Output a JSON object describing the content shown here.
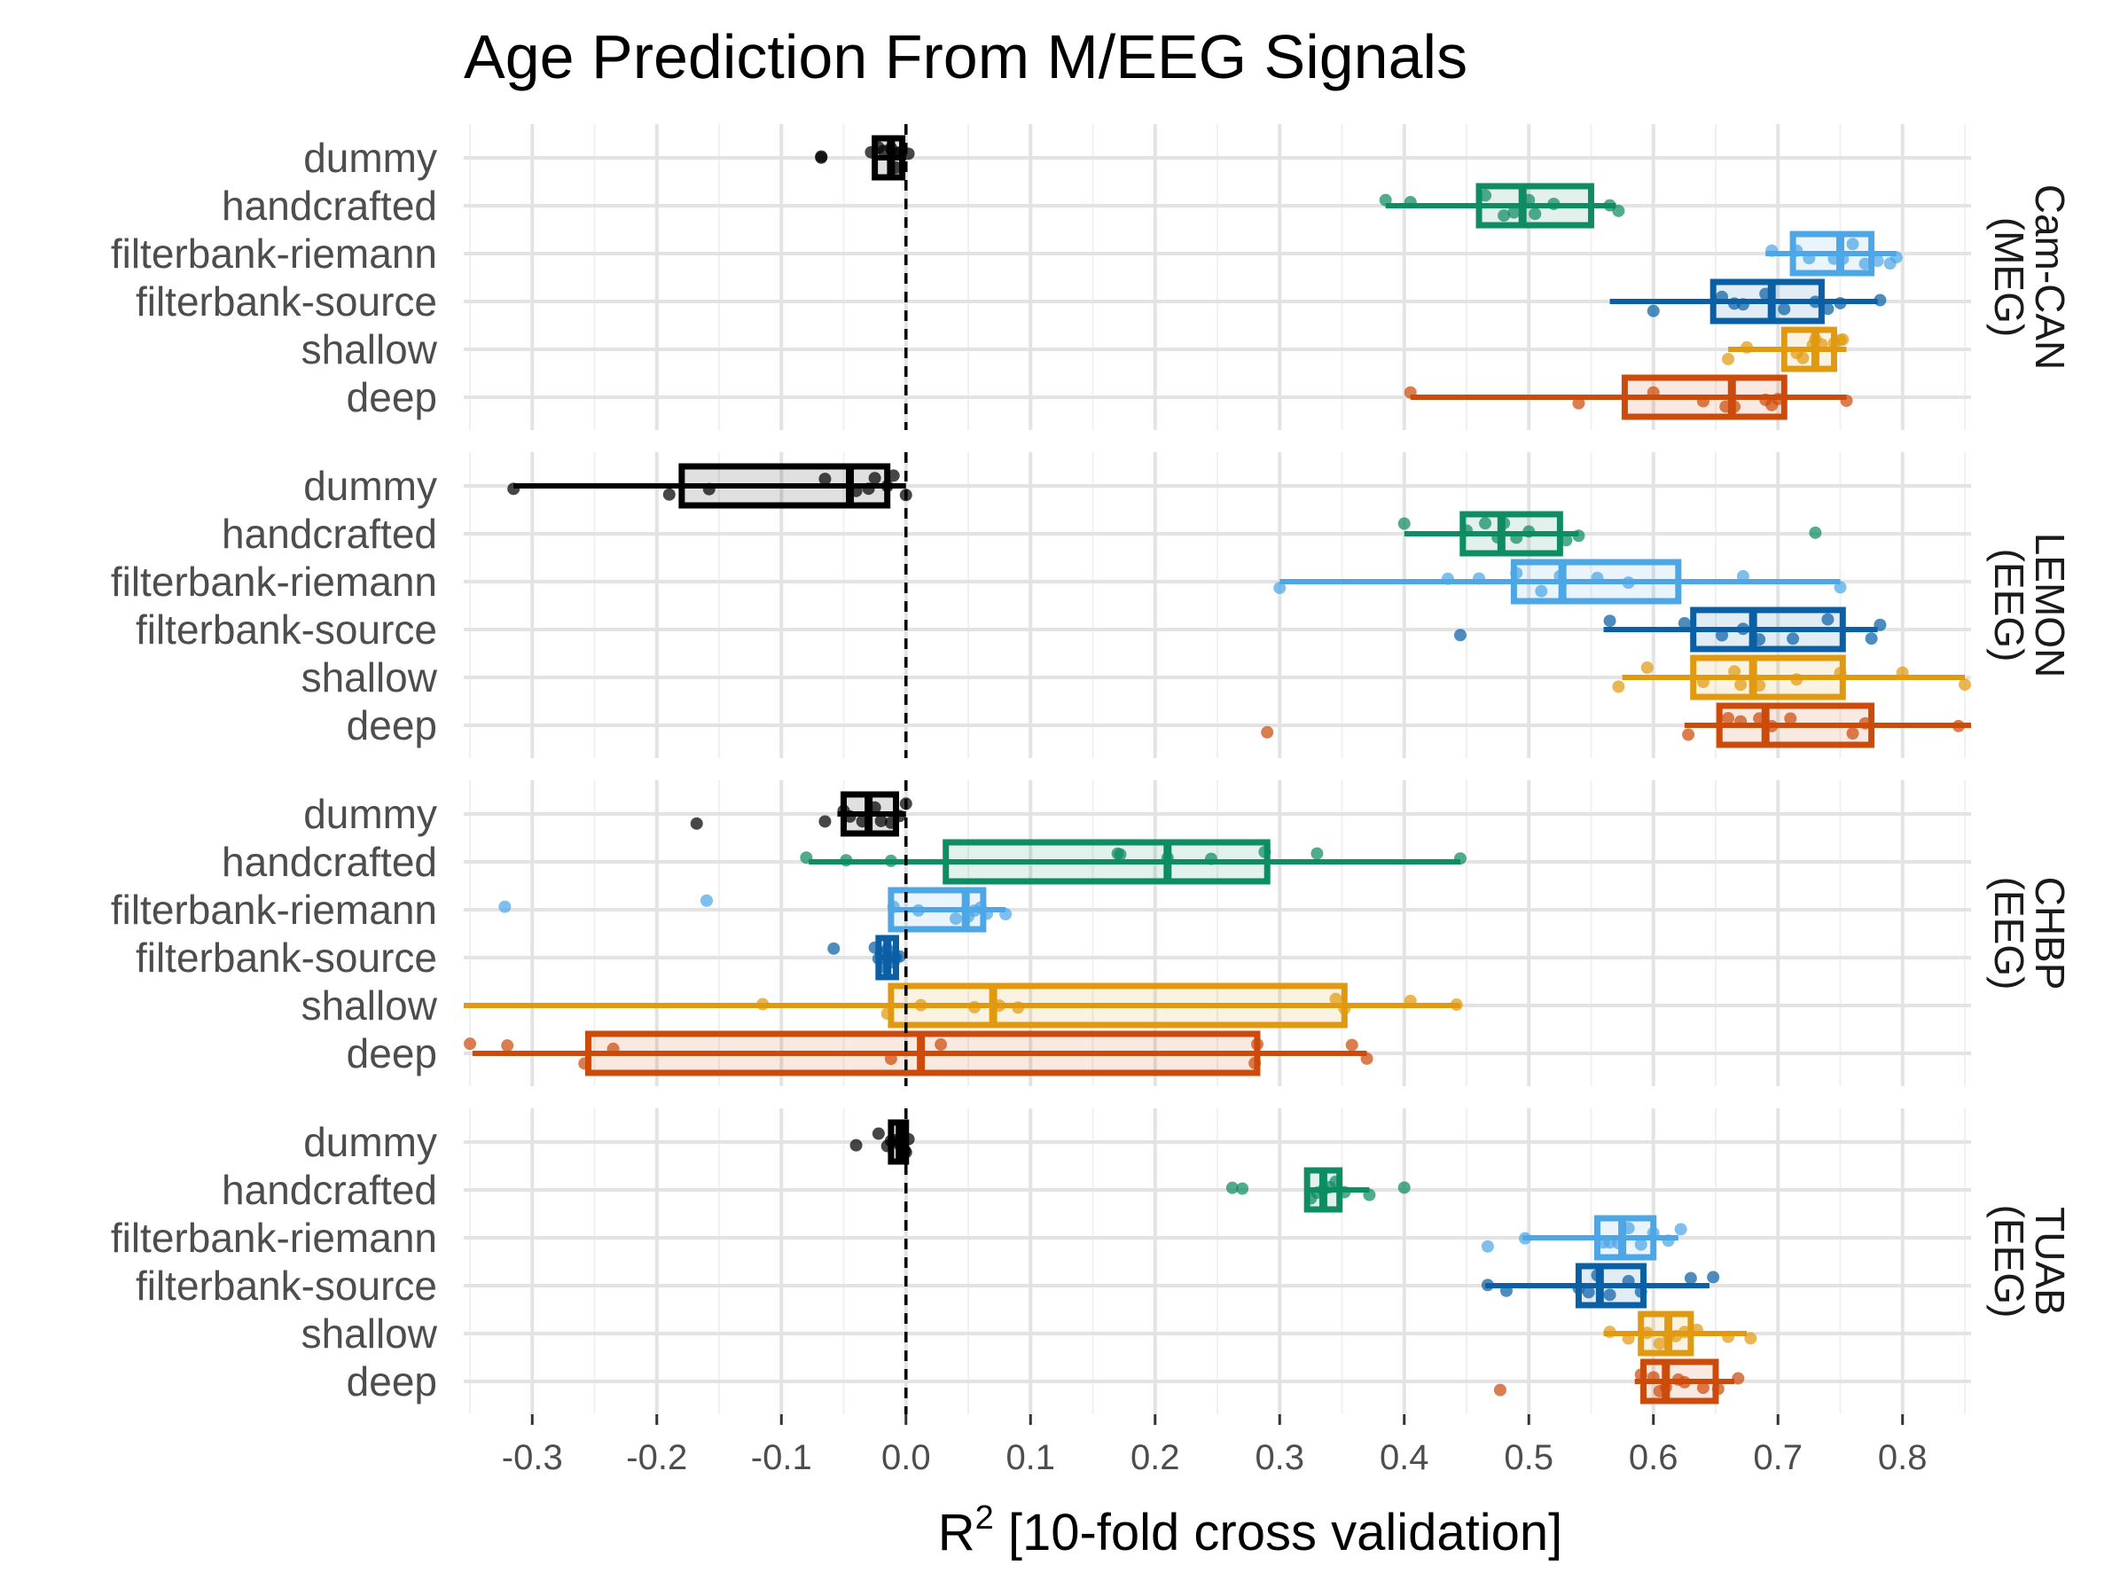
{
  "chart_data": {
    "type": "boxplot",
    "title": "Age Prediction From M/EEG Signals",
    "xlabel_main": "R",
    "xlabel_sup": "2",
    "xlabel_rest": " [10-fold cross validation]",
    "xlim": [
      -0.355,
      0.855
    ],
    "xticks": [
      -0.3,
      -0.2,
      -0.1,
      0.0,
      0.1,
      0.2,
      0.3,
      0.4,
      0.5,
      0.6,
      0.7,
      0.8
    ],
    "xtick_labels": [
      "-0.3",
      "-0.2",
      "-0.1",
      "0.0",
      "0.1",
      "0.2",
      "0.3",
      "0.4",
      "0.5",
      "0.6",
      "0.7",
      "0.8"
    ],
    "reference_line": 0.0,
    "grid": true,
    "categories": [
      "dummy",
      "handcrafted",
      "filterbank-riemann",
      "filterbank-source",
      "shallow",
      "deep"
    ],
    "colors": {
      "dummy": "#000000",
      "handcrafted": "#0e8c63",
      "filterbank-riemann": "#4da6e6",
      "filterbank-source": "#0b5fa5",
      "shallow": "#e19a10",
      "deep": "#cc4b0b"
    },
    "panels": [
      {
        "label_line1": "Cam-CAN",
        "label_line2": "(MEG)",
        "boxes": [
          {
            "name": "dummy",
            "whisker_low": -0.025,
            "q1": -0.025,
            "median": -0.012,
            "q3": -0.003,
            "whisker_high": 0.0,
            "points": [
              -0.068,
              -0.068,
              -0.028,
              -0.022,
              -0.018,
              -0.012,
              -0.008,
              -0.006,
              -0.004,
              0.002
            ]
          },
          {
            "name": "handcrafted",
            "whisker_low": 0.385,
            "q1": 0.46,
            "median": 0.495,
            "q3": 0.55,
            "whisker_high": 0.57,
            "points": [
              0.385,
              0.405,
              0.465,
              0.48,
              0.488,
              0.5,
              0.505,
              0.52,
              0.565,
              0.572
            ]
          },
          {
            "name": "filterbank-riemann",
            "whisker_low": 0.69,
            "q1": 0.712,
            "median": 0.75,
            "q3": 0.775,
            "whisker_high": 0.795,
            "points": [
              0.695,
              0.715,
              0.725,
              0.745,
              0.752,
              0.76,
              0.77,
              0.78,
              0.79,
              0.795
            ]
          },
          {
            "name": "filterbank-source",
            "whisker_low": 0.565,
            "q1": 0.648,
            "median": 0.695,
            "q3": 0.735,
            "whisker_high": 0.78,
            "points": [
              0.6,
              0.655,
              0.665,
              0.672,
              0.69,
              0.705,
              0.73,
              0.74,
              0.75,
              0.782
            ]
          },
          {
            "name": "shallow",
            "whisker_low": 0.66,
            "q1": 0.705,
            "median": 0.73,
            "q3": 0.745,
            "whisker_high": 0.755,
            "points": [
              0.66,
              0.675,
              0.715,
              0.72,
              0.728,
              0.73,
              0.735,
              0.745,
              0.75,
              0.752
            ]
          },
          {
            "name": "deep",
            "whisker_low": 0.405,
            "q1": 0.577,
            "median": 0.663,
            "q3": 0.705,
            "whisker_high": 0.755,
            "points": [
              0.405,
              0.54,
              0.6,
              0.64,
              0.658,
              0.665,
              0.69,
              0.695,
              0.7,
              0.755
            ]
          }
        ]
      },
      {
        "label_line1": "LEMON",
        "label_line2": "(EEG)",
        "boxes": [
          {
            "name": "dummy",
            "whisker_low": -0.315,
            "q1": -0.18,
            "median": -0.045,
            "q3": -0.015,
            "whisker_high": 0.0,
            "points": [
              -0.315,
              -0.19,
              -0.158,
              -0.065,
              -0.04,
              -0.03,
              -0.025,
              -0.015,
              -0.01,
              0.0
            ]
          },
          {
            "name": "handcrafted",
            "whisker_low": 0.4,
            "q1": 0.447,
            "median": 0.478,
            "q3": 0.525,
            "whisker_high": 0.54,
            "points": [
              0.4,
              0.45,
              0.465,
              0.475,
              0.48,
              0.49,
              0.5,
              0.53,
              0.54,
              0.73
            ]
          },
          {
            "name": "filterbank-riemann",
            "whisker_low": 0.3,
            "q1": 0.488,
            "median": 0.527,
            "q3": 0.62,
            "whisker_high": 0.75,
            "points": [
              0.3,
              0.435,
              0.46,
              0.49,
              0.51,
              0.525,
              0.555,
              0.58,
              0.672,
              0.75
            ]
          },
          {
            "name": "filterbank-source",
            "whisker_low": 0.56,
            "q1": 0.632,
            "median": 0.68,
            "q3": 0.752,
            "whisker_high": 0.78,
            "points": [
              0.445,
              0.565,
              0.625,
              0.655,
              0.672,
              0.685,
              0.712,
              0.74,
              0.775,
              0.782
            ]
          },
          {
            "name": "shallow",
            "whisker_low": 0.575,
            "q1": 0.632,
            "median": 0.68,
            "q3": 0.752,
            "whisker_high": 0.85,
            "points": [
              0.572,
              0.595,
              0.64,
              0.665,
              0.67,
              0.685,
              0.715,
              0.75,
              0.8,
              0.85
            ]
          },
          {
            "name": "deep",
            "whisker_low": 0.625,
            "q1": 0.653,
            "median": 0.69,
            "q3": 0.775,
            "whisker_high": 0.855,
            "points": [
              0.29,
              0.628,
              0.66,
              0.67,
              0.685,
              0.695,
              0.71,
              0.76,
              0.77,
              0.845
            ]
          }
        ]
      },
      {
        "label_line1": "CHBP",
        "label_line2": "(EEG)",
        "boxes": [
          {
            "name": "dummy",
            "whisker_low": -0.055,
            "q1": -0.05,
            "median": -0.03,
            "q3": -0.008,
            "whisker_high": 0.0,
            "points": [
              -0.168,
              -0.065,
              -0.05,
              -0.045,
              -0.035,
              -0.025,
              -0.02,
              -0.012,
              -0.005,
              0.0
            ]
          },
          {
            "name": "handcrafted",
            "whisker_low": -0.078,
            "q1": 0.032,
            "median": 0.21,
            "q3": 0.29,
            "whisker_high": 0.445,
            "points": [
              -0.08,
              -0.048,
              -0.012,
              0.17,
              0.172,
              0.21,
              0.245,
              0.288,
              0.33,
              0.445
            ]
          },
          {
            "name": "filterbank-riemann",
            "whisker_low": -0.012,
            "q1": -0.012,
            "median": 0.048,
            "q3": 0.062,
            "whisker_high": 0.08,
            "points": [
              -0.322,
              -0.16,
              -0.01,
              0.01,
              0.04,
              0.05,
              0.055,
              0.06,
              0.065,
              0.08
            ]
          },
          {
            "name": "filterbank-source",
            "whisker_low": -0.022,
            "q1": -0.022,
            "median": -0.015,
            "q3": -0.008,
            "whisker_high": -0.005,
            "points": [
              -0.058,
              -0.025,
              -0.022,
              -0.02,
              -0.018,
              -0.015,
              -0.012,
              -0.01,
              -0.008,
              -0.005
            ]
          },
          {
            "name": "shallow",
            "whisker_low": -0.355,
            "q1": -0.012,
            "median": 0.07,
            "q3": 0.352,
            "whisker_high": 0.445,
            "points": [
              -0.115,
              -0.015,
              0.012,
              0.055,
              0.075,
              0.09,
              0.345,
              0.352,
              0.405,
              0.442
            ]
          },
          {
            "name": "deep",
            "whisker_low": -0.348,
            "q1": -0.255,
            "median": 0.012,
            "q3": 0.282,
            "whisker_high": 0.37,
            "points": [
              -0.35,
              -0.32,
              -0.258,
              -0.235,
              -0.012,
              0.028,
              0.28,
              0.282,
              0.358,
              0.37
            ]
          }
        ]
      },
      {
        "label_line1": "TUAB",
        "label_line2": "(EEG)",
        "boxes": [
          {
            "name": "dummy",
            "whisker_low": -0.012,
            "q1": -0.012,
            "median": -0.005,
            "q3": 0.0,
            "whisker_high": 0.002,
            "points": [
              -0.04,
              -0.022,
              -0.015,
              -0.012,
              -0.008,
              -0.005,
              -0.003,
              -0.001,
              0.0,
              0.002
            ]
          },
          {
            "name": "handcrafted",
            "whisker_low": 0.322,
            "q1": 0.322,
            "median": 0.335,
            "q3": 0.348,
            "whisker_high": 0.372,
            "points": [
              0.262,
              0.27,
              0.325,
              0.33,
              0.335,
              0.34,
              0.345,
              0.352,
              0.372,
              0.4
            ]
          },
          {
            "name": "filterbank-riemann",
            "whisker_low": 0.495,
            "q1": 0.555,
            "median": 0.575,
            "q3": 0.6,
            "whisker_high": 0.62,
            "points": [
              0.467,
              0.497,
              0.56,
              0.565,
              0.572,
              0.58,
              0.59,
              0.6,
              0.612,
              0.622
            ]
          },
          {
            "name": "filterbank-source",
            "whisker_low": 0.465,
            "q1": 0.54,
            "median": 0.557,
            "q3": 0.592,
            "whisker_high": 0.645,
            "points": [
              0.467,
              0.482,
              0.54,
              0.548,
              0.555,
              0.565,
              0.58,
              0.59,
              0.63,
              0.648
            ]
          },
          {
            "name": "shallow",
            "whisker_low": 0.56,
            "q1": 0.59,
            "median": 0.612,
            "q3": 0.63,
            "whisker_high": 0.675,
            "points": [
              0.565,
              0.58,
              0.595,
              0.605,
              0.612,
              0.618,
              0.625,
              0.635,
              0.66,
              0.678
            ]
          },
          {
            "name": "deep",
            "whisker_low": 0.585,
            "q1": 0.592,
            "median": 0.61,
            "q3": 0.65,
            "whisker_high": 0.665,
            "points": [
              0.477,
              0.59,
              0.6,
              0.605,
              0.61,
              0.62,
              0.625,
              0.64,
              0.652,
              0.668
            ]
          }
        ]
      }
    ]
  }
}
